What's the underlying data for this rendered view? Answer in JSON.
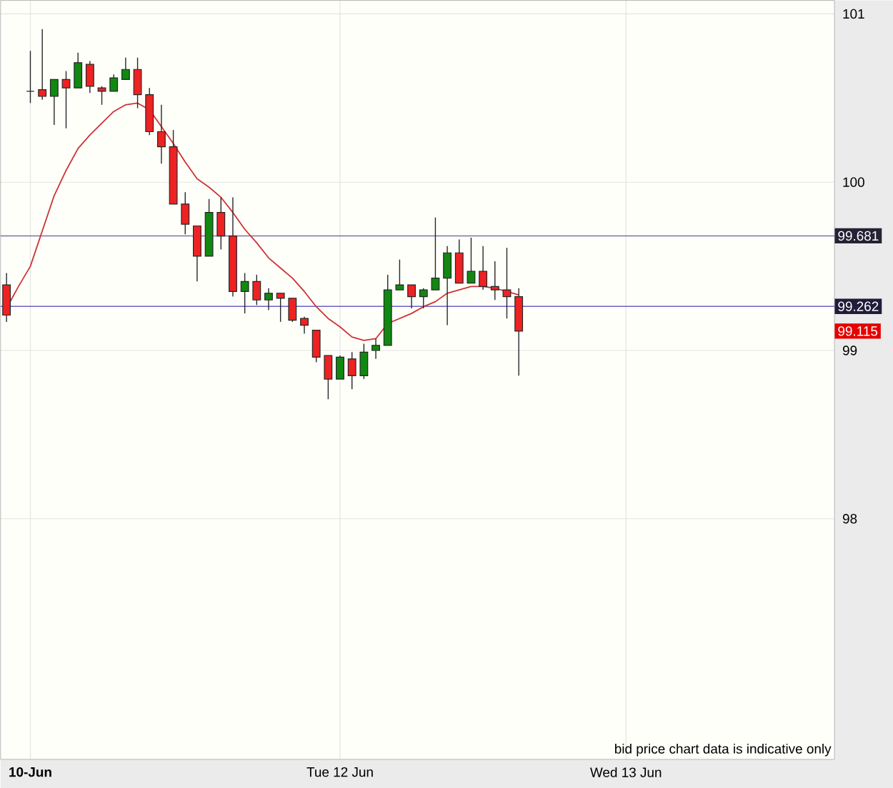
{
  "chart_data": {
    "type": "candlestick",
    "categories": [
      null,
      null,
      "**10-Jun**",
      null,
      null,
      null,
      null,
      null,
      null,
      null,
      null,
      null,
      null,
      null,
      null,
      null,
      null,
      null,
      null,
      null,
      null,
      null,
      null,
      null,
      null,
      null,
      null,
      null,
      "Tue 12 Jun",
      null,
      null,
      null,
      null,
      null,
      null,
      null,
      null,
      null,
      null,
      null,
      null,
      null,
      null,
      null,
      null,
      null,
      null,
      null,
      null,
      null,
      null,
      null,
      "Wed 13 Jun",
      null,
      null,
      null,
      null,
      null,
      null,
      null,
      null,
      null,
      null,
      null,
      null,
      null,
      null,
      null,
      null,
      null
    ],
    "series": [
      {
        "type": "line",
        "color": "#cc3333",
        "values": [
          99.25,
          99.38,
          99.5,
          99.71,
          99.92,
          100.07,
          100.2,
          100.28,
          100.35,
          100.42,
          100.46,
          100.47,
          100.43,
          100.33,
          100.23,
          100.12,
          100.02,
          99.97,
          99.91,
          99.82,
          99.72,
          99.64,
          99.55,
          99.49,
          99.43,
          99.35,
          99.26,
          99.19,
          99.14,
          99.08,
          99.06,
          99.07,
          99.16,
          99.19,
          99.22,
          99.26,
          99.29,
          99.34,
          99.36,
          99.38,
          99.38,
          99.37,
          99.35,
          99.33,
          null,
          null,
          null,
          null,
          null,
          null,
          null,
          null,
          null,
          null,
          null,
          null,
          null,
          null,
          null,
          null,
          null,
          null,
          null,
          null,
          null,
          null,
          null,
          null,
          null,
          null
        ]
      },
      {
        "ohlc": [
          [
            99.39,
            99.46,
            99.17,
            99.21
          ],
          null,
          [
            100.54,
            100.78,
            100.47,
            100.54
          ],
          [
            100.55,
            100.91,
            100.49,
            100.51
          ],
          [
            100.51,
            100.61,
            100.34,
            100.61
          ],
          [
            100.61,
            100.66,
            100.32,
            100.56
          ],
          [
            100.56,
            100.77,
            100.56,
            100.71
          ],
          [
            100.7,
            100.72,
            100.53,
            100.57
          ],
          [
            100.56,
            100.57,
            100.46,
            100.54
          ],
          [
            100.54,
            100.64,
            100.54,
            100.62
          ],
          [
            100.61,
            100.74,
            100.61,
            100.67
          ],
          [
            100.67,
            100.74,
            100.44,
            100.52
          ],
          [
            100.52,
            100.56,
            100.28,
            100.3
          ],
          [
            100.3,
            100.46,
            100.11,
            100.21
          ],
          [
            100.21,
            100.31,
            99.87,
            99.87
          ],
          [
            99.87,
            99.94,
            99.69,
            99.75
          ],
          [
            99.74,
            99.74,
            99.41,
            99.56
          ],
          [
            99.56,
            99.9,
            99.56,
            99.82
          ],
          [
            99.82,
            99.91,
            99.6,
            99.68
          ],
          [
            99.68,
            99.91,
            99.32,
            99.35
          ],
          [
            99.35,
            99.46,
            99.22,
            99.41
          ],
          [
            99.41,
            99.45,
            99.27,
            99.3
          ],
          [
            99.3,
            99.37,
            99.24,
            99.34
          ],
          [
            99.34,
            99.34,
            99.17,
            99.31
          ],
          [
            99.31,
            99.31,
            99.17,
            99.18
          ],
          [
            99.19,
            99.2,
            99.1,
            99.15
          ],
          [
            99.12,
            99.12,
            98.93,
            98.96
          ],
          [
            98.97,
            98.97,
            98.71,
            98.83
          ],
          [
            98.83,
            98.97,
            98.83,
            98.96
          ],
          [
            98.95,
            98.99,
            98.77,
            98.85
          ],
          [
            98.85,
            99.04,
            98.83,
            98.99
          ],
          [
            99.0,
            99.07,
            98.95,
            99.03
          ],
          [
            99.03,
            99.45,
            99.03,
            99.36
          ],
          [
            99.36,
            99.54,
            99.36,
            99.39
          ],
          [
            99.39,
            99.39,
            99.25,
            99.32
          ],
          [
            99.32,
            99.37,
            99.25,
            99.36
          ],
          [
            99.36,
            99.79,
            99.36,
            99.43
          ],
          [
            99.43,
            99.62,
            99.15,
            99.58
          ],
          [
            99.58,
            99.66,
            99.4,
            99.4
          ],
          [
            99.4,
            99.67,
            99.4,
            99.47
          ],
          [
            99.47,
            99.62,
            99.36,
            99.38
          ],
          [
            99.38,
            99.53,
            99.3,
            99.36
          ],
          [
            99.36,
            99.61,
            99.19,
            99.32
          ],
          [
            99.32,
            99.37,
            98.85,
            99.115
          ],
          null,
          null,
          null,
          null,
          null,
          null,
          null,
          null,
          null,
          null,
          null,
          null,
          null,
          null,
          null,
          null,
          null,
          null,
          null,
          null,
          null,
          null,
          null,
          null,
          null,
          null
        ],
        "colors": [
          "#ee2222",
          null,
          "#333333",
          "#ee2222",
          "#118811",
          "#ee2222",
          "#118811",
          "#ee2222",
          "#ee2222",
          "#118811",
          "#118811",
          "#ee2222",
          "#ee2222",
          "#ee2222",
          "#ee2222",
          "#ee2222",
          "#ee2222",
          "#118811",
          "#ee2222",
          "#ee2222",
          "#118811",
          "#ee2222",
          "#118811",
          "#ee2222",
          "#ee2222",
          "#ee2222",
          "#ee2222",
          "#ee2222",
          "#118811",
          "#ee2222",
          "#118811",
          "#118811",
          "#118811",
          "#118811",
          "#ee2222",
          "#118811",
          "#118811",
          "#118811",
          "#ee2222",
          "#118811",
          "#ee2222",
          "#ee2222",
          "#ee2222",
          "#ee2222",
          null,
          null,
          null,
          null,
          null,
          null,
          null,
          null,
          null,
          null,
          null,
          null,
          null,
          null,
          null,
          null,
          null,
          null,
          null,
          null,
          null,
          null,
          null,
          null,
          null,
          null
        ]
      }
    ],
    "ylim": [
      96.57,
      101.08
    ],
    "yticks": [
      98,
      99,
      100,
      101
    ],
    "grid": true,
    "ref_lines": [
      {
        "axis": "y",
        "value": 99.681,
        "label": "99.681",
        "color": "#7a70b0"
      },
      {
        "axis": "y",
        "value": 99.262,
        "label": "99.262",
        "color": "#6a62c0"
      }
    ],
    "annotations": [
      "bid price chart data is indicative only",
      {
        "text": "99.115",
        "y": 99.115
      }
    ]
  }
}
